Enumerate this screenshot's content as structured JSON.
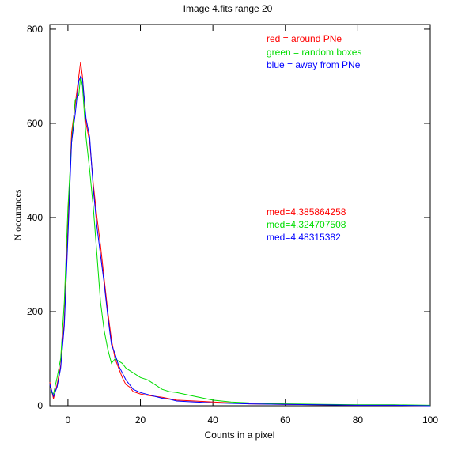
{
  "chart_data": {
    "type": "line",
    "title": "Image 4.fits   range 20",
    "xlabel": "Counts in a pixel",
    "ylabel": "N occurances",
    "xlim": [
      -5,
      100
    ],
    "ylim": [
      0,
      810
    ],
    "xticks": [
      "0",
      "20",
      "40",
      "60",
      "80",
      "100"
    ],
    "yticks": [
      "0",
      "200",
      "400",
      "600",
      "800"
    ],
    "grid": false,
    "legend_position": "top-right",
    "annotations": [
      {
        "text": "red = around PNe",
        "color": "#ff0000"
      },
      {
        "text": "green = random boxes",
        "color": "#00dd00"
      },
      {
        "text": "blue = away from PNe",
        "color": "#0000ff"
      },
      {
        "text": "med=4.385864258",
        "color": "#ff0000"
      },
      {
        "text": "med=4.324707508",
        "color": "#00dd00"
      },
      {
        "text": "med=4.48315382",
        "color": "#0000ff"
      }
    ],
    "series": [
      {
        "color": "#ff0000",
        "x": [
          -5,
          -4,
          -3,
          -2,
          -1,
          0,
          1,
          2,
          3,
          3.5,
          4,
          5,
          6,
          7,
          8,
          9,
          10,
          11,
          12,
          13,
          14,
          15,
          16,
          17,
          18,
          20,
          22,
          24,
          26,
          28,
          30,
          35,
          40,
          45,
          50,
          60,
          70,
          80,
          90,
          100
        ],
        "y": [
          50,
          15,
          45,
          85,
          180,
          380,
          580,
          640,
          700,
          730,
          700,
          600,
          560,
          470,
          400,
          340,
          270,
          200,
          140,
          100,
          80,
          60,
          45,
          40,
          30,
          25,
          22,
          20,
          18,
          15,
          12,
          10,
          8,
          6,
          4,
          3,
          2,
          1,
          1,
          0
        ]
      },
      {
        "color": "#00dd00",
        "x": [
          -5,
          -4,
          -3,
          -2,
          -1,
          0,
          1,
          2,
          3,
          3.5,
          4,
          5,
          6,
          7,
          8,
          9,
          10,
          11,
          12,
          13,
          14,
          15,
          16,
          17,
          18,
          20,
          22,
          24,
          26,
          28,
          30,
          35,
          40,
          45,
          50,
          60,
          70,
          80,
          90,
          100
        ],
        "y": [
          30,
          25,
          60,
          100,
          220,
          420,
          560,
          650,
          660,
          700,
          680,
          570,
          500,
          420,
          320,
          220,
          160,
          120,
          90,
          100,
          95,
          90,
          80,
          75,
          70,
          60,
          55,
          45,
          35,
          30,
          28,
          20,
          12,
          8,
          6,
          4,
          3,
          2,
          2,
          1
        ]
      },
      {
        "color": "#0000ff",
        "x": [
          -5,
          -4,
          -3,
          -2,
          -1,
          0,
          1,
          2,
          3,
          3.5,
          4,
          5,
          6,
          7,
          8,
          9,
          10,
          11,
          12,
          13,
          14,
          15,
          16,
          17,
          18,
          20,
          22,
          24,
          26,
          28,
          30,
          35,
          40,
          45,
          50,
          60,
          70,
          80,
          90,
          100
        ],
        "y": [
          45,
          20,
          40,
          80,
          170,
          360,
          560,
          620,
          690,
          700,
          695,
          610,
          570,
          460,
          380,
          320,
          260,
          190,
          130,
          110,
          85,
          70,
          55,
          45,
          35,
          28,
          24,
          20,
          16,
          14,
          10,
          8,
          6,
          5,
          4,
          3,
          2,
          1,
          1,
          0
        ]
      }
    ]
  }
}
